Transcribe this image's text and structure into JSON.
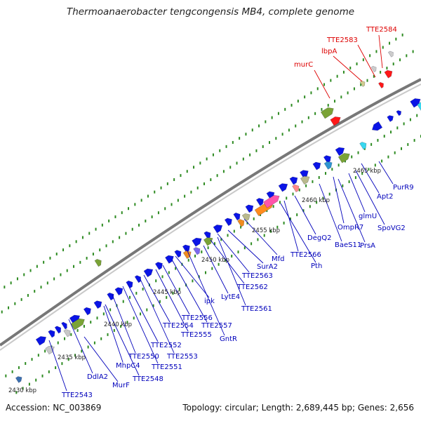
{
  "title": "Thermoanaerobacter tengcongensis MB4, complete genome",
  "footer": {
    "accession": "Accession: NC_003869",
    "topology": "Topology: circular; Length: 2,689,445 bp; Genes: 2,656"
  },
  "colors": {
    "forward_gene": "#0a14e6",
    "highlight_label": "#dd0000",
    "normal_label": "#0000bb",
    "backbone": "#777777",
    "tick": "#2e8b22"
  },
  "kbp_ticks": [
    "2430 kbp",
    "2435 kbp",
    "2440 kbp",
    "2445 kbp",
    "2450 kbp",
    "2455 kbp",
    "2460 kbp",
    "2465 kbp"
  ],
  "gene_labels": [
    {
      "text": "TTE2584",
      "group": "highlight"
    },
    {
      "text": "TTE2583",
      "group": "highlight"
    },
    {
      "text": "lbpA",
      "group": "highlight"
    },
    {
      "text": "murC",
      "group": "highlight"
    },
    {
      "text": "PurR9",
      "group": "normal"
    },
    {
      "text": "Apt2",
      "group": "normal"
    },
    {
      "text": "glmU",
      "group": "normal"
    },
    {
      "text": "SpoVG2",
      "group": "normal"
    },
    {
      "text": "OmpR7",
      "group": "normal"
    },
    {
      "text": "PrsA",
      "group": "normal"
    },
    {
      "text": "BaeS11",
      "group": "normal"
    },
    {
      "text": "DegQ2",
      "group": "normal"
    },
    {
      "text": "TTE2566",
      "group": "normal"
    },
    {
      "text": "Mfd",
      "group": "normal"
    },
    {
      "text": "Pth",
      "group": "normal"
    },
    {
      "text": "SurA2",
      "group": "normal"
    },
    {
      "text": "TTE2563",
      "group": "normal"
    },
    {
      "text": "TTE2562",
      "group": "normal"
    },
    {
      "text": "LytE4",
      "group": "normal"
    },
    {
      "text": "TTE2561",
      "group": "normal"
    },
    {
      "text": "ipk",
      "group": "normal"
    },
    {
      "text": "TTE2556",
      "group": "normal"
    },
    {
      "text": "TTE2557",
      "group": "normal"
    },
    {
      "text": "TTE2554",
      "group": "normal"
    },
    {
      "text": "TTE2555",
      "group": "normal"
    },
    {
      "text": "GntR",
      "group": "normal"
    },
    {
      "text": "TTE2552",
      "group": "normal"
    },
    {
      "text": "TTE2553",
      "group": "normal"
    },
    {
      "text": "TTE2550",
      "group": "normal"
    },
    {
      "text": "TTE2551",
      "group": "normal"
    },
    {
      "text": "MhpC4",
      "group": "normal"
    },
    {
      "text": "TTE2548",
      "group": "normal"
    },
    {
      "text": "DdlA2",
      "group": "normal"
    },
    {
      "text": "MurF",
      "group": "normal"
    },
    {
      "text": "TTE2543",
      "group": "normal"
    }
  ]
}
